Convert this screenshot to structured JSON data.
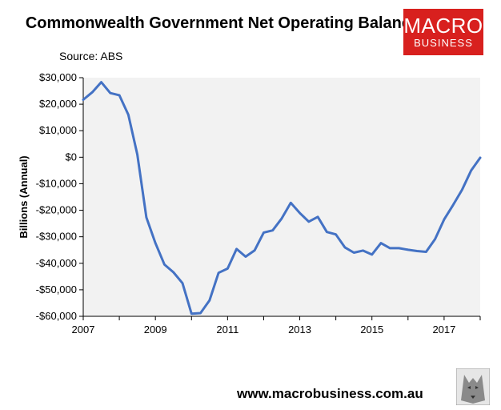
{
  "header": {
    "title": "Commonwealth Government Net Operating Balance",
    "source": "Source: ABS"
  },
  "logo": {
    "line1": "MACRO",
    "line2": "BUSINESS",
    "color": "#d8201e"
  },
  "footer": {
    "url": "www.macrobusiness.com.au"
  },
  "chart_data": {
    "type": "line",
    "title": "Commonwealth Government Net Operating Balance",
    "ylabel": "Billions (Annual)",
    "xlim": [
      2007,
      2018
    ],
    "ylim": [
      -60000,
      30000
    ],
    "yticks": [
      30000,
      20000,
      10000,
      0,
      -10000,
      -20000,
      -30000,
      -40000,
      -50000,
      -60000
    ],
    "ytick_labels": [
      "$30,000",
      "$20,000",
      "$10,000",
      "$0",
      "-$10,000",
      "-$20,000",
      "-$30,000",
      "-$40,000",
      "-$50,000",
      "-$60,000"
    ],
    "xticks": [
      2007,
      2009,
      2011,
      2013,
      2015,
      2017
    ],
    "xtick_labels": [
      "2007",
      "2009",
      "2011",
      "2013",
      "2015",
      "2017"
    ],
    "grid": false,
    "plot_background": "#f2f2f2",
    "series": [
      {
        "color": "#4472c4",
        "points": [
          [
            2007.0,
            21700
          ],
          [
            2007.25,
            24500
          ],
          [
            2007.5,
            28300
          ],
          [
            2007.75,
            24200
          ],
          [
            2008.0,
            23400
          ],
          [
            2008.25,
            16000
          ],
          [
            2008.5,
            1000
          ],
          [
            2008.75,
            -22700
          ],
          [
            2009.0,
            -32400
          ],
          [
            2009.25,
            -40500
          ],
          [
            2009.5,
            -43400
          ],
          [
            2009.75,
            -47500
          ],
          [
            2010.0,
            -59000
          ],
          [
            2010.25,
            -58800
          ],
          [
            2010.5,
            -54000
          ],
          [
            2010.75,
            -43600
          ],
          [
            2011.0,
            -42000
          ],
          [
            2011.25,
            -34600
          ],
          [
            2011.5,
            -37500
          ],
          [
            2011.75,
            -35100
          ],
          [
            2012.0,
            -28400
          ],
          [
            2012.25,
            -27600
          ],
          [
            2012.5,
            -23100
          ],
          [
            2012.75,
            -17200
          ],
          [
            2013.0,
            -21000
          ],
          [
            2013.25,
            -24300
          ],
          [
            2013.5,
            -22500
          ],
          [
            2013.75,
            -28200
          ],
          [
            2014.0,
            -29100
          ],
          [
            2014.25,
            -34000
          ],
          [
            2014.5,
            -36000
          ],
          [
            2014.75,
            -35200
          ],
          [
            2015.0,
            -36700
          ],
          [
            2015.25,
            -32400
          ],
          [
            2015.5,
            -34300
          ],
          [
            2015.75,
            -34300
          ],
          [
            2016.0,
            -34900
          ],
          [
            2016.25,
            -35400
          ],
          [
            2016.5,
            -35700
          ],
          [
            2016.75,
            -30900
          ],
          [
            2017.0,
            -23500
          ],
          [
            2017.25,
            -18000
          ],
          [
            2017.5,
            -12200
          ],
          [
            2017.75,
            -5000
          ],
          [
            2018.0,
            -200
          ]
        ]
      }
    ]
  }
}
